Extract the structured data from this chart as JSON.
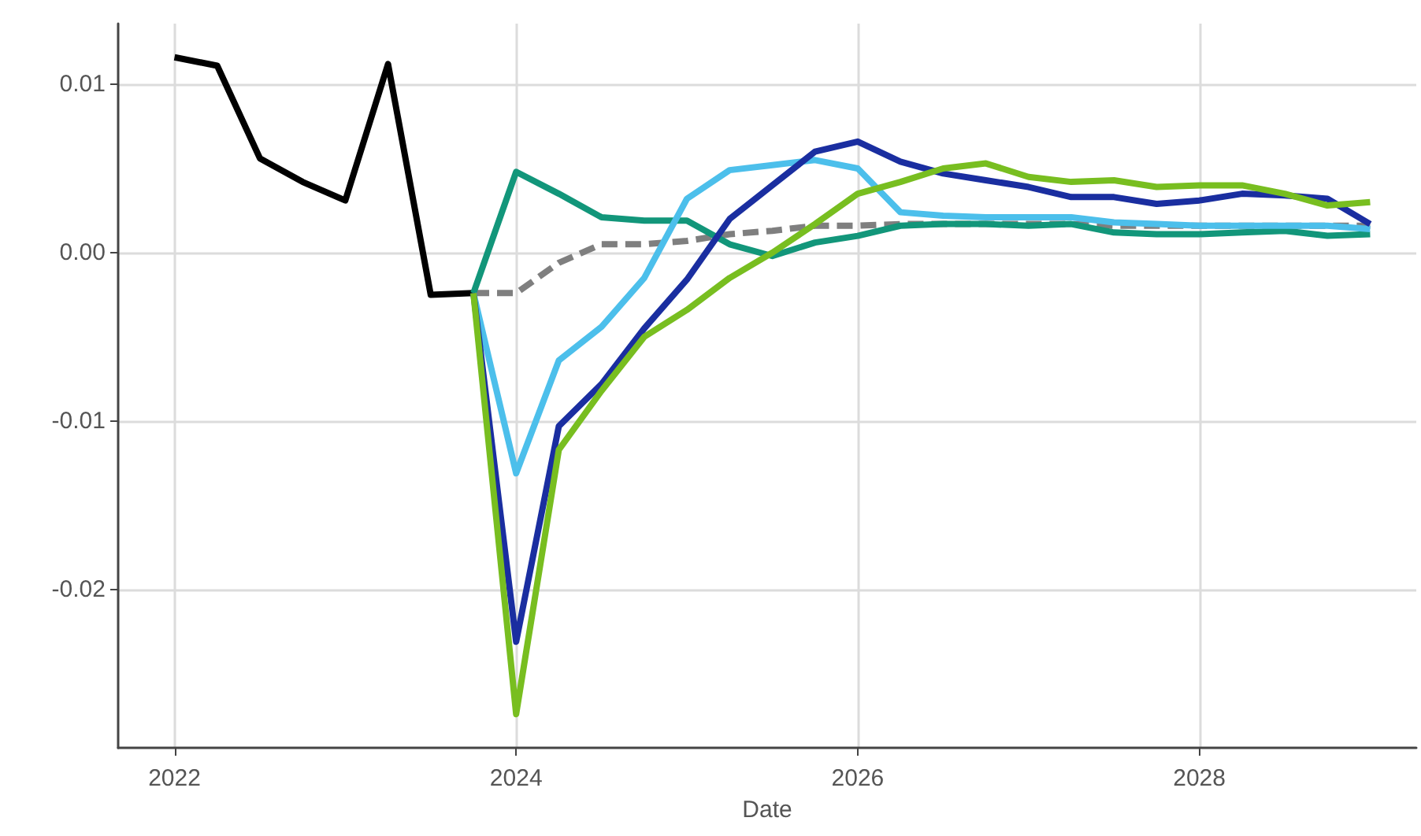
{
  "chart_data": {
    "type": "line",
    "xlabel": "Date",
    "xlim": [
      2021.67,
      2029.27
    ],
    "xticks": [
      2022,
      2024,
      2026,
      2028
    ],
    "ylim": [
      -0.0294,
      0.0136
    ],
    "yticks": [
      {
        "value": -0.02,
        "label": "-0.02"
      },
      {
        "value": -0.01,
        "label": "-0.01"
      },
      {
        "value": 0,
        "label": "0.00"
      },
      {
        "value": 0.01,
        "label": "0.01"
      }
    ],
    "grid": true,
    "marker": "none",
    "series": [
      {
        "color": "#7f7f7f",
        "line_style": "dashed",
        "x": [
          2023.75,
          2024,
          2024.25,
          2024.5,
          2024.75,
          2025,
          2025.25,
          2025.5,
          2025.75,
          2026,
          2026.25,
          2026.5,
          2026.75,
          2027,
          2027.25,
          2027.5,
          2027.75,
          2028,
          2028.25,
          2028.5,
          2028.75,
          2029
        ],
        "values": [
          -0.0024,
          -0.0024,
          -0.0006,
          0.0005,
          0.0005,
          0.0007,
          0.0011,
          0.0013,
          0.0016,
          0.0016,
          0.0017,
          0.0017,
          0.0017,
          0.0017,
          0.0017,
          0.0016,
          0.0016,
          0.0016,
          0.0016,
          0.0016,
          0.0016,
          0.0016
        ]
      },
      {
        "color": "#000000",
        "x": [
          2022,
          2022.25,
          2022.5,
          2022.75,
          2023,
          2023.25,
          2023.5,
          2023.75
        ],
        "values": [
          0.0116,
          0.0111,
          0.0056,
          0.0042,
          0.0031,
          0.0112,
          -0.0025,
          -0.0024
        ]
      },
      {
        "color": "#12967a",
        "x": [
          2023.75,
          2024,
          2024.25,
          2024.5,
          2024.75,
          2025,
          2025.25,
          2025.5,
          2025.75,
          2026,
          2026.25,
          2026.5,
          2026.75,
          2027,
          2027.25,
          2027.5,
          2027.75,
          2028,
          2028.25,
          2028.5,
          2028.75,
          2029
        ],
        "values": [
          -0.0024,
          0.0048,
          0.0035,
          0.0021,
          0.0019,
          0.0019,
          0.0005,
          -0.0002,
          0.0006,
          0.001,
          0.0016,
          0.0017,
          0.0017,
          0.0016,
          0.0017,
          0.0012,
          0.0011,
          0.0011,
          0.0012,
          0.0013,
          0.001,
          0.0011
        ]
      },
      {
        "color": "#4cbfeb",
        "x": [
          2023.75,
          2024,
          2024.25,
          2024.5,
          2024.75,
          2025,
          2025.25,
          2025.5,
          2025.75,
          2026,
          2026.25,
          2026.5,
          2026.75,
          2027,
          2027.25,
          2027.5,
          2027.75,
          2028,
          2028.25,
          2028.5,
          2028.75,
          2029
        ],
        "values": [
          -0.0024,
          -0.0131,
          -0.0064,
          -0.0044,
          -0.0015,
          0.0032,
          0.0049,
          0.0052,
          0.0055,
          0.005,
          0.0024,
          0.0022,
          0.0021,
          0.0021,
          0.0021,
          0.0018,
          0.0017,
          0.0016,
          0.0016,
          0.0016,
          0.0016,
          0.0014
        ]
      },
      {
        "color": "#1a2ea0",
        "x": [
          2023.75,
          2024,
          2024.25,
          2024.5,
          2024.75,
          2025,
          2025.25,
          2025.5,
          2025.75,
          2026,
          2026.25,
          2026.5,
          2026.75,
          2027,
          2027.25,
          2027.5,
          2027.75,
          2028,
          2028.25,
          2028.5,
          2028.75,
          2029
        ],
        "values": [
          -0.0024,
          -0.0231,
          -0.0103,
          -0.0078,
          -0.0045,
          -0.0016,
          0.002,
          0.004,
          0.006,
          0.0066,
          0.0054,
          0.0047,
          0.0043,
          0.0039,
          0.0033,
          0.0033,
          0.0029,
          0.0031,
          0.0035,
          0.0034,
          0.0032,
          0.0017
        ]
      },
      {
        "color": "#78be20",
        "x": [
          2023.75,
          2024,
          2024.25,
          2024.5,
          2024.75,
          2025,
          2025.25,
          2025.5,
          2025.75,
          2026,
          2026.25,
          2026.5,
          2026.75,
          2027,
          2027.25,
          2027.5,
          2027.75,
          2028,
          2028.25,
          2028.5,
          2028.75,
          2029
        ],
        "values": [
          -0.0024,
          -0.0274,
          -0.0117,
          -0.0082,
          -0.005,
          -0.0034,
          -0.0015,
          0,
          0.0017,
          0.0035,
          0.0042,
          0.005,
          0.0053,
          0.0045,
          0.0042,
          0.0043,
          0.0039,
          0.004,
          0.004,
          0.0035,
          0.0028,
          0.003
        ]
      }
    ]
  }
}
